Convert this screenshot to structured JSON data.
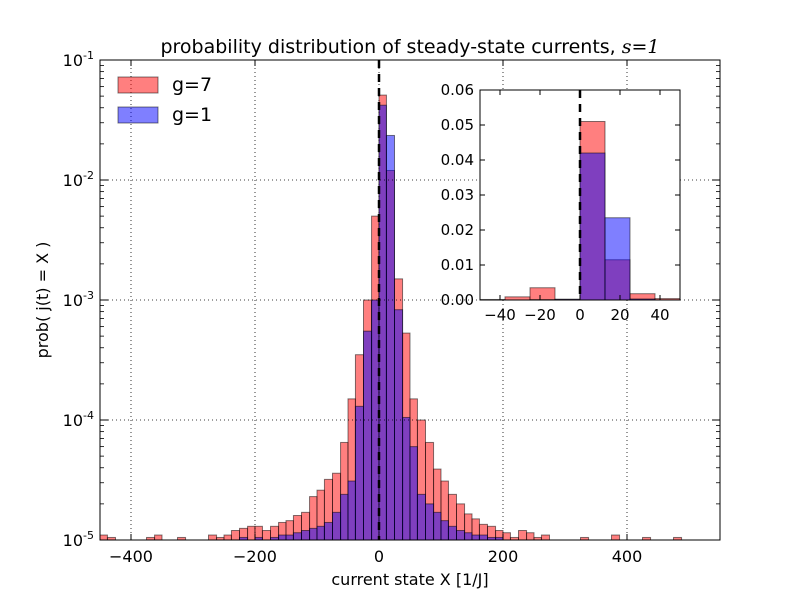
{
  "chart_data": [
    {
      "type": "bar",
      "subtype": "histogram",
      "title": "probability distribution of steady-state currents, ",
      "title_math": "s=1",
      "xlabel": "current state X [1/J]",
      "ylabel": "prob( j(t) = X )",
      "xlim": [
        -450,
        550
      ],
      "ylim": [
        1e-05,
        0.1
      ],
      "yscale": "log",
      "grid": true,
      "legend_position": "top-left",
      "x_ticks": [
        "−400",
        "−200",
        "0",
        "200",
        "400"
      ],
      "x_tick_values": [
        -400,
        -200,
        0,
        200,
        400
      ],
      "y_ticks": [
        {
          "value": 0.1,
          "base": "10",
          "exp": "-1"
        },
        {
          "value": 0.01,
          "base": "10",
          "exp": "-2"
        },
        {
          "value": 0.001,
          "base": "10",
          "exp": "-3"
        },
        {
          "value": 0.0001,
          "base": "10",
          "exp": "-4"
        },
        {
          "value": 1e-05,
          "base": "10",
          "exp": "-5"
        }
      ],
      "vline_x": 0,
      "series": [
        {
          "name": "g=7",
          "color": "#ff0000",
          "alpha": 0.5,
          "bins": [
            [
              -450,
              -438,
              1.1e-05
            ],
            [
              -438,
              -425,
              1.05e-05
            ],
            [
              -375,
              -362,
              1.05e-05
            ],
            [
              -362,
              -350,
              1.1e-05
            ],
            [
              -325,
              -312,
              1.05e-05
            ],
            [
              -275,
              -262,
              1.1e-05
            ],
            [
              -262,
              -250,
              1.05e-05
            ],
            [
              -250,
              -238,
              1.1e-05
            ],
            [
              -238,
              -225,
              1.2e-05
            ],
            [
              -225,
              -212,
              1.25e-05
            ],
            [
              -212,
              -200,
              1.3e-05
            ],
            [
              -200,
              -188,
              1.3e-05
            ],
            [
              -188,
              -175,
              1.2e-05
            ],
            [
              -175,
              -162,
              1.3e-05
            ],
            [
              -162,
              -150,
              1.4e-05
            ],
            [
              -150,
              -138,
              1.45e-05
            ],
            [
              -138,
              -125,
              1.6e-05
            ],
            [
              -125,
              -112,
              1.7e-05
            ],
            [
              -112,
              -100,
              2.3e-05
            ],
            [
              -100,
              -88,
              2.6e-05
            ],
            [
              -88,
              -75,
              3.2e-05
            ],
            [
              -75,
              -62,
              3.6e-05
            ],
            [
              -62,
              -50,
              6.5e-05
            ],
            [
              -50,
              -38,
              0.00015
            ],
            [
              -38,
              -25,
              0.00035
            ],
            [
              -25,
              -12,
              0.001
            ],
            [
              -12,
              0,
              0.005
            ],
            [
              0,
              12,
              0.051
            ],
            [
              12,
              25,
              0.012
            ],
            [
              25,
              38,
              0.0015
            ],
            [
              38,
              50,
              0.00053
            ],
            [
              50,
              62,
              0.00015
            ],
            [
              62,
              75,
              0.0001
            ],
            [
              75,
              88,
              6.5e-05
            ],
            [
              88,
              100,
              3.9e-05
            ],
            [
              100,
              112,
              3.1e-05
            ],
            [
              112,
              125,
              2.4e-05
            ],
            [
              125,
              138,
              2e-05
            ],
            [
              138,
              150,
              1.65e-05
            ],
            [
              150,
              162,
              1.5e-05
            ],
            [
              162,
              175,
              1.35e-05
            ],
            [
              175,
              188,
              1.3e-05
            ],
            [
              188,
              200,
              1.2e-05
            ],
            [
              200,
              212,
              1.15e-05
            ],
            [
              212,
              225,
              1.05e-05
            ],
            [
              225,
              238,
              1.2e-05
            ],
            [
              238,
              250,
              1.15e-05
            ],
            [
              250,
              262,
              1.05e-05
            ],
            [
              262,
              275,
              1.1e-05
            ],
            [
              325,
              338,
              1.05e-05
            ],
            [
              375,
              388,
              1.1e-05
            ],
            [
              425,
              438,
              1.05e-05
            ],
            [
              475,
              488,
              1.05e-05
            ]
          ]
        },
        {
          "name": "g=1",
          "color": "#0000ff",
          "alpha": 0.5,
          "bins": [
            [
              -225,
              -212,
              1.05e-05
            ],
            [
              -200,
              -188,
              1.05e-05
            ],
            [
              -175,
              -162,
              1.05e-05
            ],
            [
              -162,
              -150,
              1.1e-05
            ],
            [
              -150,
              -138,
              1.1e-05
            ],
            [
              -138,
              -125,
              1.15e-05
            ],
            [
              -125,
              -112,
              1.2e-05
            ],
            [
              -112,
              -100,
              1.25e-05
            ],
            [
              -100,
              -88,
              1.3e-05
            ],
            [
              -88,
              -75,
              1.4e-05
            ],
            [
              -75,
              -62,
              1.7e-05
            ],
            [
              -62,
              -50,
              2.4e-05
            ],
            [
              -50,
              -38,
              3.1e-05
            ],
            [
              -38,
              -25,
              0.00013
            ],
            [
              -25,
              -12,
              0.00055
            ],
            [
              -12,
              0,
              0.001
            ],
            [
              0,
              12,
              0.042
            ],
            [
              12,
              25,
              0.0235
            ],
            [
              25,
              38,
              0.00083
            ],
            [
              38,
              50,
              0.000105
            ],
            [
              50,
              62,
              6e-05
            ],
            [
              62,
              75,
              2.4e-05
            ],
            [
              75,
              88,
              2e-05
            ],
            [
              88,
              100,
              1.7e-05
            ],
            [
              100,
              112,
              1.45e-05
            ],
            [
              112,
              125,
              1.3e-05
            ],
            [
              125,
              138,
              1.2e-05
            ],
            [
              138,
              150,
              1.15e-05
            ],
            [
              150,
              162,
              1.1e-05
            ],
            [
              162,
              175,
              1.1e-05
            ],
            [
              175,
              188,
              1.05e-05
            ],
            [
              188,
              200,
              1.05e-05
            ]
          ]
        }
      ]
    },
    {
      "type": "bar",
      "subtype": "histogram-inset",
      "xlim": [
        -50,
        50
      ],
      "ylim": [
        0,
        0.06
      ],
      "yscale": "linear",
      "x_ticks": [
        "−40",
        "−20",
        "0",
        "20",
        "40"
      ],
      "x_tick_values": [
        -40,
        -20,
        0,
        20,
        40
      ],
      "y_ticks": [
        "0.00",
        "0.01",
        "0.02",
        "0.03",
        "0.04",
        "0.05",
        "0.06"
      ],
      "y_tick_values": [
        0,
        0.01,
        0.02,
        0.03,
        0.04,
        0.05,
        0.06
      ],
      "vline_x": 0,
      "series": [
        {
          "name": "g=7",
          "color": "#ff0000",
          "alpha": 0.5,
          "bins": [
            [
              -50,
              -37.5,
              0.00015
            ],
            [
              -37.5,
              -25,
              0.0009
            ],
            [
              -25,
              -12.5,
              0.0035
            ],
            [
              -12.5,
              0,
              0.0002
            ],
            [
              0,
              12.5,
              0.051
            ],
            [
              12.5,
              25,
              0.0115
            ],
            [
              25,
              37.5,
              0.0018
            ],
            [
              37.5,
              50,
              0.0004
            ]
          ]
        },
        {
          "name": "g=1",
          "color": "#0000ff",
          "alpha": 0.5,
          "bins": [
            [
              -25,
              -12.5,
              0.0001
            ],
            [
              -12.5,
              0,
              0.0002
            ],
            [
              0,
              12.5,
              0.042
            ],
            [
              12.5,
              25,
              0.0235
            ],
            [
              25,
              37.5,
              0.0003
            ]
          ]
        }
      ]
    }
  ]
}
